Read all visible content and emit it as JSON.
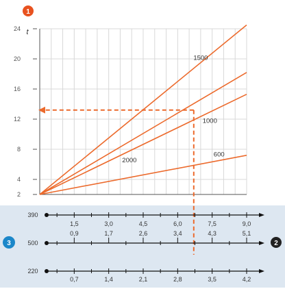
{
  "chart_data": {
    "type": "line",
    "title": "",
    "xlabel": "",
    "ylabel": "",
    "ylim": [
      2,
      24
    ],
    "y_ticks": [
      {
        "value": 2,
        "label": "2"
      },
      {
        "value": 4,
        "label": "4"
      },
      {
        "value": 8,
        "label": "8"
      },
      {
        "value": 12,
        "label": "12"
      },
      {
        "value": 16,
        "label": "16"
      },
      {
        "value": 20,
        "label": "20"
      },
      {
        "value": 24,
        "label": "24"
      }
    ],
    "y_unit": "t",
    "xlim": [
      0,
      9.0
    ],
    "grid": true,
    "series": [
      {
        "name": "1500",
        "x": [
          0,
          9.0
        ],
        "y": [
          2,
          24.5
        ]
      },
      {
        "name": "2000",
        "x": [
          0,
          9.0
        ],
        "y": [
          2,
          18.2
        ]
      },
      {
        "name": "1000",
        "x": [
          0,
          9.0
        ],
        "y": [
          2,
          15.3
        ]
      },
      {
        "name": "600",
        "x": [
          0,
          9.0
        ],
        "y": [
          2,
          7.2
        ]
      }
    ],
    "example": {
      "x": 6.7,
      "y": 13.2
    },
    "scales": [
      {
        "name": "390",
        "ticks": [
          "1,5",
          "3,0",
          "4,5",
          "6,0",
          "7,5",
          "9,0"
        ],
        "position": "above"
      },
      {
        "name": "500",
        "ticks": [
          "0,9",
          "1,7",
          "2,6",
          "3,4",
          "4,3",
          "5,1"
        ],
        "position": "below"
      },
      {
        "name": "220",
        "ticks": [
          "0,7",
          "1,4",
          "2,1",
          "2,8",
          "3,5",
          "4,2"
        ],
        "position": "below"
      }
    ],
    "markers": {
      "top": "1",
      "left": "3",
      "right": "2"
    },
    "colors": {
      "line": "#ec6a2c",
      "marker_orange": "#e8521f",
      "marker_blue": "#1b87c9",
      "band": "#dde7f1"
    }
  }
}
